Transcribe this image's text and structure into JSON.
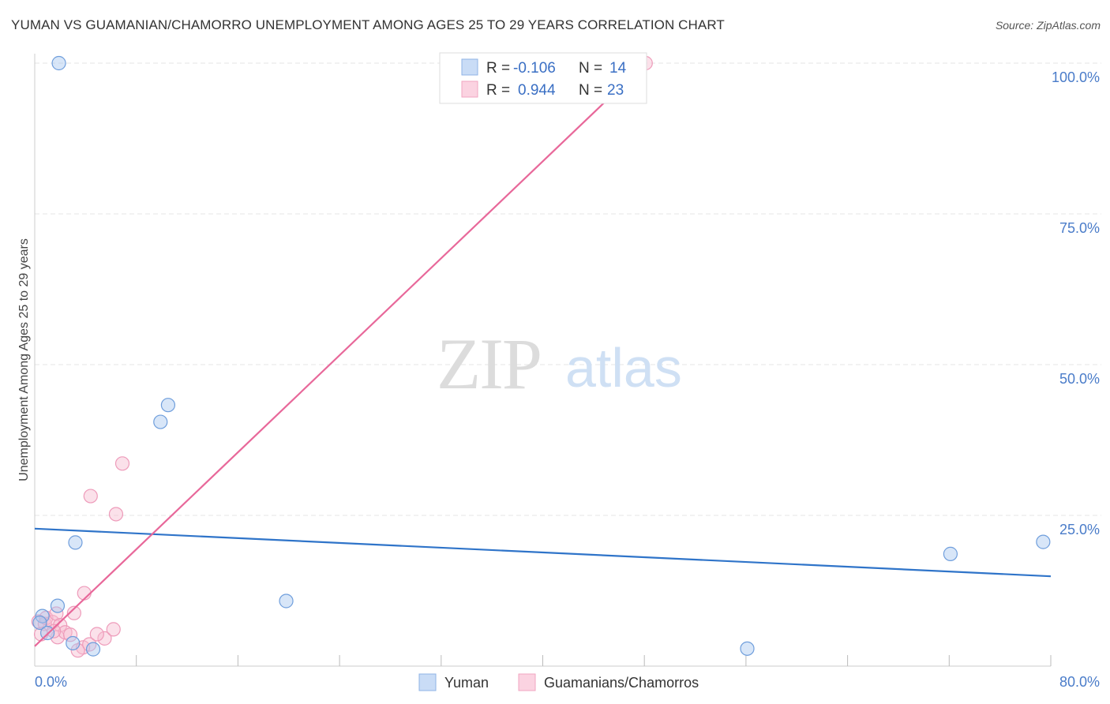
{
  "title": "YUMAN VS GUAMANIAN/CHAMORRO UNEMPLOYMENT AMONG AGES 25 TO 29 YEARS CORRELATION CHART",
  "source": "Source: ZipAtlas.com",
  "watermark": {
    "zip": "ZIP",
    "atlas": "atlas"
  },
  "colors": {
    "yuman": "#a9c8f0",
    "yuman_line": "#2f74c9",
    "guam": "#f6bcd0",
    "guam_line": "#e8689a",
    "axis_text": "#4a7cc9",
    "grid": "#e4e4e4"
  },
  "chart_data": {
    "type": "scatter",
    "title": "YUMAN VS GUAMANIAN/CHAMORRO UNEMPLOYMENT AMONG AGES 25 TO 29 YEARS CORRELATION CHART",
    "xlabel": "",
    "ylabel": "Unemployment Among Ages 25 to 29 years",
    "xlim": [
      0,
      80
    ],
    "ylim": [
      0,
      100
    ],
    "x_tick_labels": [
      "0.0%",
      "80.0%"
    ],
    "y_tick_labels": [
      "100.0%",
      "75.0%",
      "50.0%",
      "25.0%"
    ],
    "y_tick_values": [
      100,
      75,
      50,
      25
    ],
    "legend": {
      "position": "bottom",
      "entries": [
        "Yuman",
        "Guamanians/Chamorros"
      ]
    },
    "stats": [
      {
        "r_label": "R =",
        "r_value": "-0.106",
        "n_label": "N =",
        "n_value": "14"
      },
      {
        "r_label": "R =",
        "r_value": "0.944",
        "n_label": "N =",
        "n_value": "23"
      }
    ],
    "series": [
      {
        "name": "Yuman",
        "points": [
          [
            1.9,
            100
          ],
          [
            0.6,
            8.3
          ],
          [
            0.4,
            7.2
          ],
          [
            1.0,
            5.5
          ],
          [
            1.8,
            10.0
          ],
          [
            3.2,
            20.5
          ],
          [
            3.0,
            3.8
          ],
          [
            4.6,
            2.8
          ],
          [
            9.9,
            40.5
          ],
          [
            10.5,
            43.3
          ],
          [
            19.8,
            10.8
          ],
          [
            56.1,
            2.9
          ],
          [
            72.1,
            18.6
          ],
          [
            79.4,
            20.6
          ]
        ],
        "trend": {
          "x": [
            0,
            80
          ],
          "y": [
            22.8,
            14.9
          ]
        }
      },
      {
        "name": "Guamanians/Chamorros",
        "points": [
          [
            48.1,
            100
          ],
          [
            6.9,
            33.6
          ],
          [
            4.4,
            28.2
          ],
          [
            6.4,
            25.2
          ],
          [
            3.9,
            12.1
          ],
          [
            0.3,
            7.4
          ],
          [
            0.8,
            7.0
          ],
          [
            0.9,
            8.0
          ],
          [
            1.4,
            7.3
          ],
          [
            1.7,
            8.7
          ],
          [
            2.0,
            6.8
          ],
          [
            1.8,
            4.8
          ],
          [
            2.4,
            5.6
          ],
          [
            2.8,
            5.2
          ],
          [
            3.1,
            8.8
          ],
          [
            3.8,
            3.1
          ],
          [
            3.4,
            2.6
          ],
          [
            4.3,
            3.6
          ],
          [
            5.5,
            4.6
          ],
          [
            4.9,
            5.3
          ],
          [
            6.2,
            6.1
          ],
          [
            0.5,
            5.3
          ],
          [
            1.5,
            5.8
          ]
        ],
        "trend": {
          "x": [
            0,
            48.1
          ],
          "y": [
            3.3,
            100
          ]
        }
      }
    ]
  }
}
